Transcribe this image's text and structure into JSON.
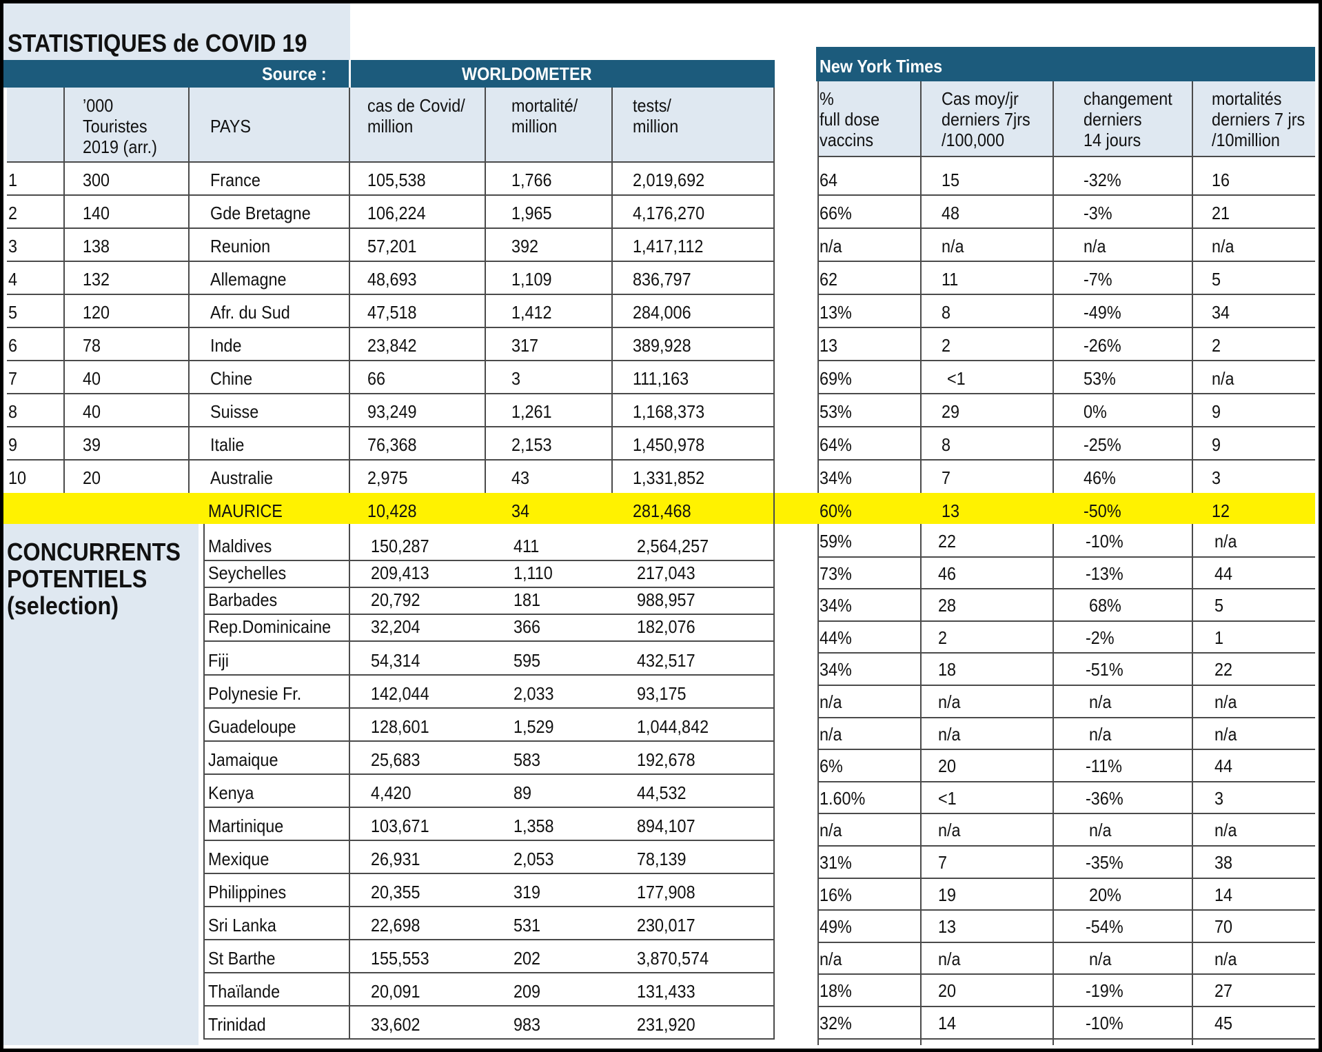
{
  "title": "STATISTIQUES de COVID 19",
  "source_label": "Source :",
  "source_name": "WORLDOMETER",
  "nyt_label": "New York Times",
  "colors": {
    "header_bar": "#1c5b7c",
    "panel": "#dfe8f1",
    "highlight": "#fff200"
  },
  "headers_left": [
    {
      "lines": [
        ""
      ]
    },
    {
      "lines": [
        "’000",
        "Touristes",
        "2019 (arr.)"
      ]
    },
    {
      "lines": [
        "PAYS"
      ]
    },
    {
      "lines": [
        "cas de Covid/",
        "million"
      ]
    },
    {
      "lines": [
        "mortalité/",
        "million"
      ]
    },
    {
      "lines": [
        "tests/",
        "million"
      ]
    }
  ],
  "headers_right": [
    {
      "lines": [
        "%",
        "full dose",
        "vaccins"
      ]
    },
    {
      "lines": [
        "Cas moy/jr",
        "derniers 7jrs",
        "/100,000"
      ]
    },
    {
      "lines": [
        "changement",
        "derniers",
        "14 jours"
      ]
    },
    {
      "lines": [
        "mortalités",
        "derniers 7 jrs",
        "/10million"
      ]
    }
  ],
  "top_rows": [
    [
      "1",
      "300",
      "France",
      "105,538",
      "1,766",
      "2,019,692",
      "64",
      "15",
      "-32%",
      "16"
    ],
    [
      "2",
      "140",
      "Gde Bretagne",
      "106,224",
      "1,965",
      "4,176,270",
      "66%",
      "48",
      "-3%",
      "21"
    ],
    [
      "3",
      "138",
      "Reunion",
      "57,201",
      "392",
      "1,417,112",
      "n/a",
      "n/a",
      "n/a",
      "n/a"
    ],
    [
      "4",
      "132",
      "Allemagne",
      "48,693",
      "1,109",
      "836,797",
      "62",
      "11",
      "-7%",
      "5"
    ],
    [
      "5",
      "120",
      "Afr. du Sud",
      "47,518",
      "1,412",
      "284,006",
      "13%",
      "8",
      "-49%",
      "34"
    ],
    [
      "6",
      "78",
      "Inde",
      "23,842",
      "317",
      "389,928",
      "13",
      "2",
      "-26%",
      "2"
    ],
    [
      "7",
      "40",
      "Chine",
      "66",
      "3",
      "111,163",
      "69%",
      "<1",
      "53%",
      "n/a"
    ],
    [
      "8",
      "40",
      "Suisse",
      "93,249",
      "1,261",
      "1,168,373",
      "53%",
      "29",
      "0%",
      "9"
    ],
    [
      "9",
      "39",
      "Italie",
      "76,368",
      "2,153",
      "1,450,978",
      "64%",
      "8",
      "-25%",
      "9"
    ],
    [
      "10",
      "20",
      "Australie",
      "2,975",
      "43",
      "1,331,852",
      "34%",
      "7",
      "46%",
      "3"
    ]
  ],
  "maurice_row": [
    "",
    "",
    "MAURICE",
    "10,428",
    "34",
    "281,468",
    "60%",
    "13",
    "-50%",
    "12"
  ],
  "competitors_title": [
    "CONCURRENTS",
    "POTENTIELS",
    "(selection)"
  ],
  "left_comp_rows": [
    [
      "Maldives",
      "150,287",
      "411",
      "2,564,257"
    ],
    [
      "Seychelles",
      "209,413",
      "1,110",
      "217,043"
    ],
    [
      "Barbades",
      "20,792",
      "181",
      "988,957"
    ],
    [
      "Rep.Dominicaine",
      "32,204",
      "366",
      "182,076"
    ],
    [
      "Fiji",
      "54,314",
      "595",
      "432,517"
    ],
    [
      "Polynesie Fr.",
      "142,044",
      "2,033",
      "93,175"
    ],
    [
      "Guadeloupe",
      "128,601",
      "1,529",
      "1,044,842"
    ],
    [
      "Jamaique",
      "25,683",
      "583",
      "192,678"
    ],
    [
      "Kenya",
      "4,420",
      "89",
      "44,532"
    ],
    [
      "Martinique",
      "103,671",
      "1,358",
      "894,107"
    ],
    [
      "Mexique",
      "26,931",
      "2,053",
      "78,139"
    ],
    [
      "Philippines",
      "20,355",
      "319",
      "177,908"
    ],
    [
      "Sri Lanka",
      "22,698",
      "531",
      "230,017"
    ],
    [
      "St Barthe",
      "155,553",
      "202",
      "3,870,574"
    ],
    [
      "Thaïlande",
      "20,091",
      "209",
      "131,433"
    ],
    [
      "Trinidad",
      "33,602",
      "983",
      "231,920"
    ]
  ],
  "right_comp_rows": [
    [
      "59%",
      "22",
      "-10%",
      "n/a"
    ],
    [
      "73%",
      "46",
      "-13%",
      "44"
    ],
    [
      "34%",
      "28",
      "68%",
      "5"
    ],
    [
      "44%",
      "2",
      "-2%",
      "1"
    ],
    [
      "34%",
      "18",
      "-51%",
      "22"
    ],
    [
      "n/a",
      "n/a",
      "n/a",
      "n/a"
    ],
    [
      "n/a",
      "n/a",
      "n/a",
      "n/a"
    ],
    [
      "6%",
      "20",
      "-11%",
      "44"
    ],
    [
      "1.60%",
      "<1",
      "-36%",
      "3"
    ],
    [
      "n/a",
      "n/a",
      "n/a",
      "n/a"
    ],
    [
      "31%",
      "7",
      "-35%",
      "38"
    ],
    [
      "16%",
      "19",
      "20%",
      "14"
    ],
    [
      "49%",
      "13",
      "-54%",
      "70"
    ],
    [
      "n/a",
      "n/a",
      "n/a",
      "n/a"
    ],
    [
      "18%",
      "20",
      "-19%",
      "27"
    ],
    [
      "32%",
      "14",
      "-10%",
      "45"
    ]
  ]
}
